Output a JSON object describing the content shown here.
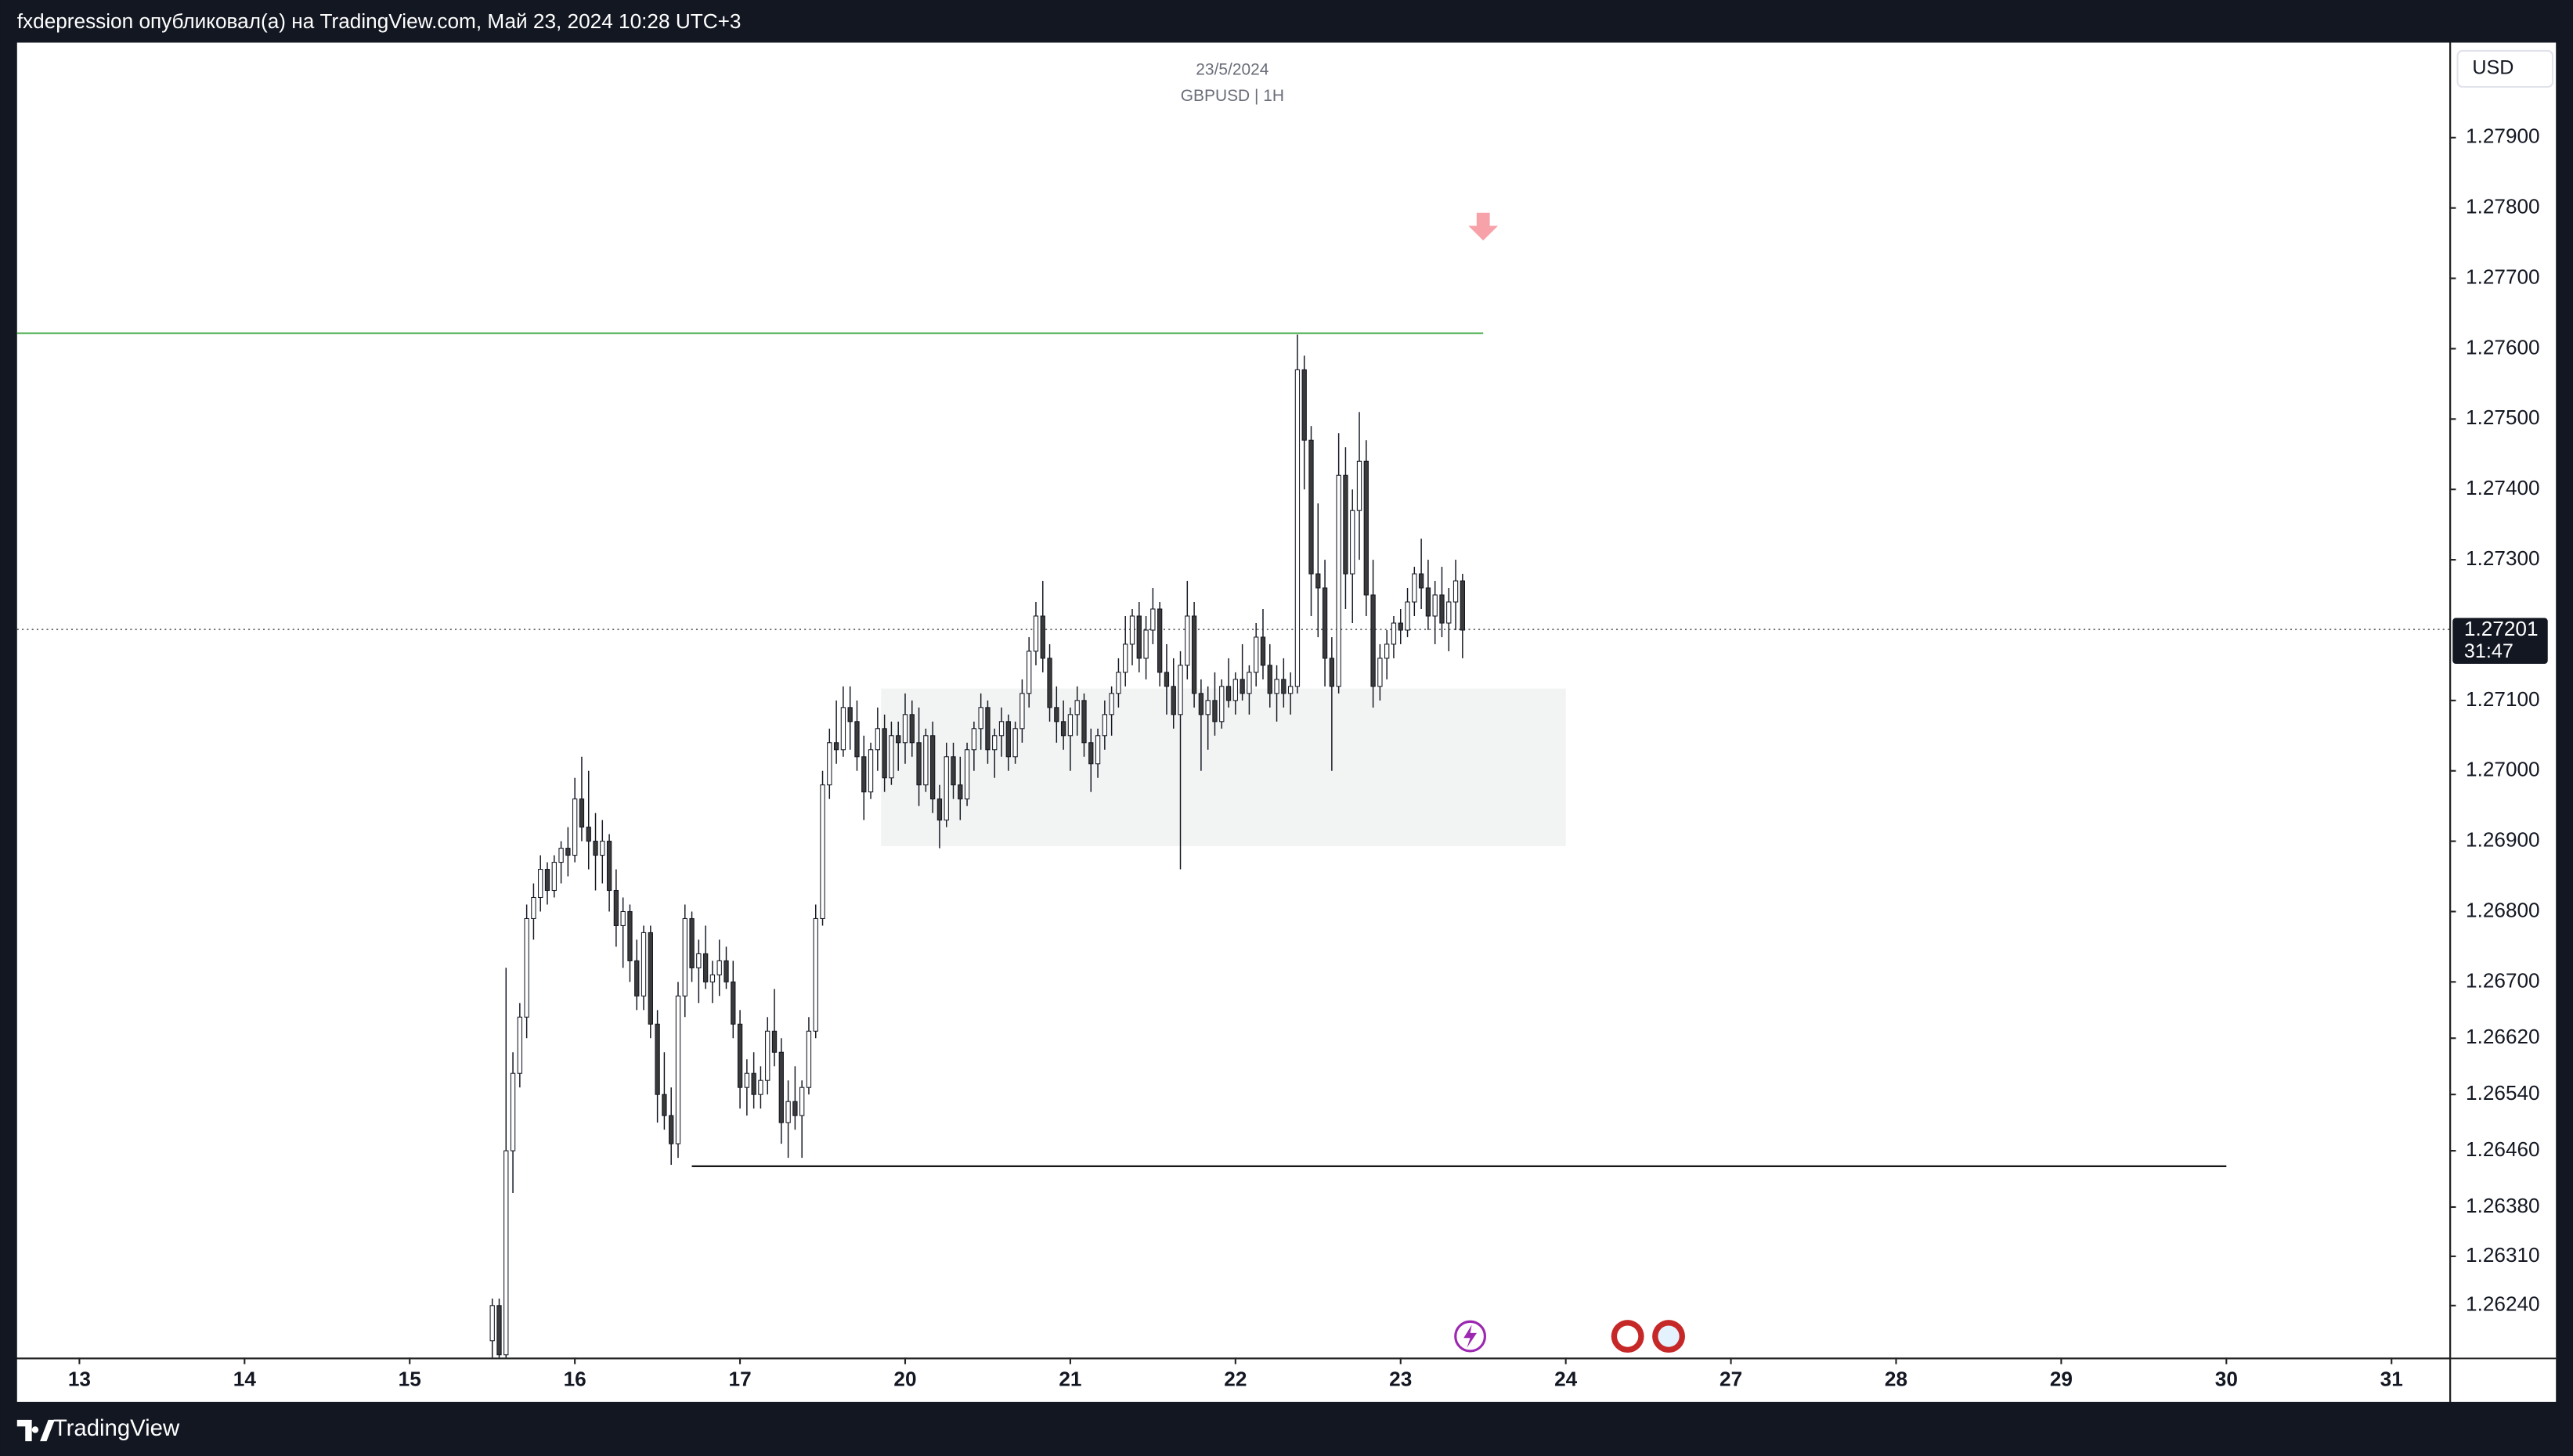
{
  "header": "fxdepression опубликовал(а) на TradingView.com, Май 23, 2024 10:28 UTC+3",
  "footer": "TradingView",
  "chart_data": {
    "type": "candlestick",
    "title": "23/5/2024",
    "subtitle": "GBPUSD | 1H",
    "currency": "USD",
    "last_price": 1.27201,
    "countdown": "31:47",
    "xlim": [
      -9.06,
      344.4
    ],
    "ylim": [
      1.26166,
      1.28035
    ],
    "xticks": [
      {
        "value": 0,
        "label": "13"
      },
      {
        "value": 24,
        "label": "14"
      },
      {
        "value": 48,
        "label": "15"
      },
      {
        "value": 72,
        "label": "16"
      },
      {
        "value": 96,
        "label": "17"
      },
      {
        "value": 120,
        "label": "20"
      },
      {
        "value": 144,
        "label": "21"
      },
      {
        "value": 168,
        "label": "22"
      },
      {
        "value": 192,
        "label": "23"
      },
      {
        "value": 216,
        "label": "24"
      },
      {
        "value": 240,
        "label": "27"
      },
      {
        "value": 264,
        "label": "28"
      },
      {
        "value": 288,
        "label": "29"
      },
      {
        "value": 312,
        "label": "30"
      },
      {
        "value": 336,
        "label": "31"
      }
    ],
    "yticks": [
      {
        "value": 1.2624,
        "label": "1.26240"
      },
      {
        "value": 1.2631,
        "label": "1.26310"
      },
      {
        "value": 1.2638,
        "label": "1.26380"
      },
      {
        "value": 1.2646,
        "label": "1.26460"
      },
      {
        "value": 1.2654,
        "label": "1.26540"
      },
      {
        "value": 1.2662,
        "label": "1.26620"
      },
      {
        "value": 1.267,
        "label": "1.26700"
      },
      {
        "value": 1.268,
        "label": "1.26800"
      },
      {
        "value": 1.269,
        "label": "1.26900"
      },
      {
        "value": 1.27,
        "label": "1.27000"
      },
      {
        "value": 1.271,
        "label": "1.27100"
      },
      {
        "value": 1.273,
        "label": "1.27300"
      },
      {
        "value": 1.274,
        "label": "1.27400"
      },
      {
        "value": 1.275,
        "label": "1.27500"
      },
      {
        "value": 1.276,
        "label": "1.27600"
      },
      {
        "value": 1.277,
        "label": "1.27700"
      },
      {
        "value": 1.278,
        "label": "1.27800"
      },
      {
        "value": 1.279,
        "label": "1.27900"
      }
    ],
    "up_color": "#ffffff",
    "down_color": "#3a3a3a",
    "levels": [
      {
        "price": 1.27622,
        "x": [
          -9.06,
          204
        ],
        "color": "#4caf50"
      },
      {
        "price": 1.26438,
        "x": [
          89,
          312
        ],
        "color": "#000000"
      }
    ],
    "zone": {
      "x": [
        116.5,
        216
      ],
      "price": [
        1.26893,
        1.27117
      ],
      "color": "#f2f4f3"
    },
    "arrow": {
      "x": 204,
      "price": 1.2777,
      "color": "#f7a1a8"
    },
    "x": [
      60,
      61,
      62,
      63,
      64,
      65,
      66,
      67,
      68,
      69,
      70,
      71,
      72,
      73,
      74,
      75,
      76,
      77,
      78,
      79,
      80,
      81,
      82,
      83,
      84,
      85,
      86,
      87,
      88,
      89,
      90,
      91,
      92,
      93,
      94,
      95,
      96,
      97,
      98,
      99,
      100,
      101,
      102,
      103,
      104,
      105,
      106,
      107,
      108,
      109,
      110,
      111,
      112,
      113,
      114,
      115,
      116,
      117,
      118,
      119,
      120,
      121,
      122,
      123,
      124,
      125,
      126,
      127,
      128,
      129,
      130,
      131,
      132,
      133,
      134,
      135,
      136,
      137,
      138,
      139,
      140,
      141,
      142,
      143,
      144,
      145,
      146,
      147,
      148,
      149,
      150,
      151,
      152,
      153,
      154,
      155,
      156,
      157,
      158,
      159,
      160,
      161,
      162,
      163,
      164,
      165,
      166,
      167,
      168,
      169,
      170,
      171,
      172,
      173,
      174,
      175,
      176,
      177,
      178,
      179,
      180,
      181,
      182,
      183,
      184,
      185,
      186,
      187,
      188,
      189,
      190,
      191,
      192,
      193,
      194,
      195,
      196,
      197,
      198,
      199,
      200,
      201
    ],
    "ohlc": [
      [
        1.2619,
        1.2625,
        1.2615,
        1.2624
      ],
      [
        1.2624,
        1.2625,
        1.2615,
        1.2617
      ],
      [
        1.2617,
        1.2672,
        1.2615,
        1.2646
      ],
      [
        1.2646,
        1.266,
        1.264,
        1.2657
      ],
      [
        1.2657,
        1.2667,
        1.2655,
        1.2665
      ],
      [
        1.2665,
        1.2681,
        1.2662,
        1.2679
      ],
      [
        1.2679,
        1.2684,
        1.2676,
        1.2682
      ],
      [
        1.2682,
        1.2688,
        1.268,
        1.2686
      ],
      [
        1.2686,
        1.2687,
        1.2681,
        1.2683
      ],
      [
        1.2683,
        1.2688,
        1.2682,
        1.2687
      ],
      [
        1.2687,
        1.269,
        1.2684,
        1.2689
      ],
      [
        1.2689,
        1.2692,
        1.2685,
        1.2688
      ],
      [
        1.2688,
        1.2699,
        1.2687,
        1.2696
      ],
      [
        1.2696,
        1.2702,
        1.269,
        1.2692
      ],
      [
        1.2692,
        1.27,
        1.2686,
        1.269
      ],
      [
        1.269,
        1.2694,
        1.2683,
        1.2688
      ],
      [
        1.2688,
        1.2693,
        1.2684,
        1.269
      ],
      [
        1.269,
        1.2691,
        1.268,
        1.2683
      ],
      [
        1.2683,
        1.2686,
        1.2675,
        1.2678
      ],
      [
        1.2678,
        1.2682,
        1.2672,
        1.268
      ],
      [
        1.268,
        1.2681,
        1.267,
        1.2673
      ],
      [
        1.2673,
        1.2676,
        1.2666,
        1.2668
      ],
      [
        1.2668,
        1.2678,
        1.2666,
        1.2677
      ],
      [
        1.2677,
        1.2678,
        1.2662,
        1.2664
      ],
      [
        1.2664,
        1.2666,
        1.265,
        1.2654
      ],
      [
        1.2654,
        1.266,
        1.2649,
        1.2651
      ],
      [
        1.2651,
        1.2655,
        1.2644,
        1.2647
      ],
      [
        1.2647,
        1.267,
        1.2645,
        1.2668
      ],
      [
        1.2668,
        1.2681,
        1.2665,
        1.2679
      ],
      [
        1.2679,
        1.268,
        1.267,
        1.2672
      ],
      [
        1.2672,
        1.2676,
        1.2667,
        1.2674
      ],
      [
        1.2674,
        1.2678,
        1.2669,
        1.267
      ],
      [
        1.267,
        1.2673,
        1.2667,
        1.2671
      ],
      [
        1.2671,
        1.2676,
        1.2668,
        1.2673
      ],
      [
        1.2673,
        1.2675,
        1.2669,
        1.267
      ],
      [
        1.267,
        1.2673,
        1.2662,
        1.2664
      ],
      [
        1.2664,
        1.2666,
        1.2652,
        1.2655
      ],
      [
        1.2655,
        1.2659,
        1.2651,
        1.2657
      ],
      [
        1.2657,
        1.266,
        1.2652,
        1.2654
      ],
      [
        1.2654,
        1.2658,
        1.2652,
        1.2656
      ],
      [
        1.2656,
        1.2665,
        1.2654,
        1.2663
      ],
      [
        1.2663,
        1.2669,
        1.2658,
        1.266
      ],
      [
        1.266,
        1.2662,
        1.2647,
        1.265
      ],
      [
        1.265,
        1.2656,
        1.2645,
        1.2653
      ],
      [
        1.2653,
        1.2658,
        1.2649,
        1.2651
      ],
      [
        1.2651,
        1.2656,
        1.2645,
        1.2655
      ],
      [
        1.2655,
        1.2665,
        1.2654,
        1.2663
      ],
      [
        1.2663,
        1.2681,
        1.2662,
        1.2679
      ],
      [
        1.2679,
        1.27,
        1.2678,
        1.2698
      ],
      [
        1.2698,
        1.2706,
        1.2696,
        1.2704
      ],
      [
        1.2704,
        1.271,
        1.2701,
        1.2703
      ],
      [
        1.2703,
        1.2712,
        1.2702,
        1.2709
      ],
      [
        1.2709,
        1.2712,
        1.2703,
        1.2707
      ],
      [
        1.2707,
        1.271,
        1.27,
        1.2702
      ],
      [
        1.2702,
        1.2705,
        1.2693,
        1.2697
      ],
      [
        1.2697,
        1.2704,
        1.2696,
        1.2703
      ],
      [
        1.2703,
        1.2709,
        1.27,
        1.2706
      ],
      [
        1.2706,
        1.2708,
        1.2697,
        1.2699
      ],
      [
        1.2699,
        1.2707,
        1.2698,
        1.2705
      ],
      [
        1.2705,
        1.2707,
        1.27,
        1.2704
      ],
      [
        1.2704,
        1.2711,
        1.2701,
        1.2708
      ],
      [
        1.2708,
        1.271,
        1.2702,
        1.2704
      ],
      [
        1.2704,
        1.2709,
        1.2695,
        1.2698
      ],
      [
        1.2698,
        1.2706,
        1.2697,
        1.2705
      ],
      [
        1.2705,
        1.2707,
        1.2694,
        1.2696
      ],
      [
        1.2696,
        1.2698,
        1.2689,
        1.2693
      ],
      [
        1.2693,
        1.2704,
        1.2692,
        1.2702
      ],
      [
        1.2702,
        1.2704,
        1.2696,
        1.2698
      ],
      [
        1.2698,
        1.2702,
        1.2693,
        1.2696
      ],
      [
        1.2696,
        1.2704,
        1.2695,
        1.2703
      ],
      [
        1.2703,
        1.2707,
        1.27,
        1.2706
      ],
      [
        1.2706,
        1.2711,
        1.2703,
        1.2709
      ],
      [
        1.2709,
        1.271,
        1.2701,
        1.2703
      ],
      [
        1.2703,
        1.2706,
        1.2699,
        1.2705
      ],
      [
        1.2705,
        1.2709,
        1.2702,
        1.2707
      ],
      [
        1.2707,
        1.2708,
        1.27,
        1.2702
      ],
      [
        1.2702,
        1.2707,
        1.2701,
        1.2706
      ],
      [
        1.2706,
        1.2713,
        1.2704,
        1.2711
      ],
      [
        1.2711,
        1.2719,
        1.2709,
        1.2717
      ],
      [
        1.2717,
        1.2724,
        1.2715,
        1.2722
      ],
      [
        1.2722,
        1.2727,
        1.2714,
        1.2716
      ],
      [
        1.2716,
        1.2718,
        1.2707,
        1.2709
      ],
      [
        1.2709,
        1.2712,
        1.2704,
        1.2707
      ],
      [
        1.2707,
        1.271,
        1.2703,
        1.2705
      ],
      [
        1.2705,
        1.2709,
        1.27,
        1.2708
      ],
      [
        1.2708,
        1.2712,
        1.2705,
        1.271
      ],
      [
        1.271,
        1.2711,
        1.2702,
        1.2704
      ],
      [
        1.2704,
        1.2706,
        1.2697,
        1.2701
      ],
      [
        1.2701,
        1.2706,
        1.2699,
        1.2705
      ],
      [
        1.2705,
        1.271,
        1.2703,
        1.2708
      ],
      [
        1.2708,
        1.2712,
        1.2705,
        1.2711
      ],
      [
        1.2711,
        1.2716,
        1.2709,
        1.2714
      ],
      [
        1.2714,
        1.2722,
        1.2712,
        1.2718
      ],
      [
        1.2718,
        1.2723,
        1.2715,
        1.2722
      ],
      [
        1.2722,
        1.2724,
        1.2714,
        1.2716
      ],
      [
        1.2716,
        1.2722,
        1.2713,
        1.272
      ],
      [
        1.272,
        1.2726,
        1.2718,
        1.2723
      ],
      [
        1.2723,
        1.2724,
        1.2712,
        1.2714
      ],
      [
        1.2714,
        1.2718,
        1.2708,
        1.2712
      ],
      [
        1.2712,
        1.2716,
        1.2706,
        1.2708
      ],
      [
        1.2708,
        1.2717,
        1.2686,
        1.2715
      ],
      [
        1.2715,
        1.2727,
        1.2713,
        1.2722
      ],
      [
        1.2722,
        1.2724,
        1.2709,
        1.2711
      ],
      [
        1.2711,
        1.2713,
        1.27,
        1.2708
      ],
      [
        1.2708,
        1.2712,
        1.2703,
        1.271
      ],
      [
        1.271,
        1.2714,
        1.2705,
        1.2707
      ],
      [
        1.2707,
        1.2713,
        1.2706,
        1.2712
      ],
      [
        1.2712,
        1.2716,
        1.2709,
        1.271
      ],
      [
        1.271,
        1.2714,
        1.2708,
        1.2713
      ],
      [
        1.2713,
        1.2718,
        1.271,
        1.2711
      ],
      [
        1.2711,
        1.2715,
        1.2708,
        1.2714
      ],
      [
        1.2714,
        1.2721,
        1.2712,
        1.2719
      ],
      [
        1.2719,
        1.2723,
        1.2713,
        1.2715
      ],
      [
        1.2715,
        1.2718,
        1.2709,
        1.2711
      ],
      [
        1.2711,
        1.2715,
        1.2707,
        1.2713
      ],
      [
        1.2713,
        1.2716,
        1.2709,
        1.2711
      ],
      [
        1.2711,
        1.2714,
        1.2708,
        1.2712
      ],
      [
        1.2712,
        1.2762,
        1.2711,
        1.2757
      ],
      [
        1.2757,
        1.2759,
        1.274,
        1.2747
      ],
      [
        1.2747,
        1.2749,
        1.2722,
        1.2728
      ],
      [
        1.2728,
        1.2738,
        1.2719,
        1.2726
      ],
      [
        1.2726,
        1.273,
        1.2712,
        1.2716
      ],
      [
        1.2716,
        1.2719,
        1.27,
        1.2712
      ],
      [
        1.2712,
        1.2748,
        1.2711,
        1.2742
      ],
      [
        1.2742,
        1.2746,
        1.2723,
        1.2728
      ],
      [
        1.2728,
        1.274,
        1.2721,
        1.2737
      ],
      [
        1.2737,
        1.2751,
        1.273,
        1.2744
      ],
      [
        1.2744,
        1.2747,
        1.2722,
        1.2725
      ],
      [
        1.2725,
        1.273,
        1.2709,
        1.2712
      ],
      [
        1.2712,
        1.2718,
        1.271,
        1.2716
      ],
      [
        1.2716,
        1.272,
        1.2713,
        1.2718
      ],
      [
        1.2718,
        1.2722,
        1.2716,
        1.2721
      ],
      [
        1.2721,
        1.2723,
        1.2718,
        1.272
      ],
      [
        1.272,
        1.2726,
        1.2719,
        1.2724
      ],
      [
        1.2724,
        1.2729,
        1.2722,
        1.2728
      ],
      [
        1.2728,
        1.2733,
        1.2723,
        1.2726
      ],
      [
        1.2726,
        1.273,
        1.272,
        1.2722
      ],
      [
        1.2722,
        1.2727,
        1.2718,
        1.2725
      ],
      [
        1.2725,
        1.2729,
        1.2719,
        1.2721
      ],
      [
        1.2721,
        1.2726,
        1.2717,
        1.2724
      ],
      [
        1.2724,
        1.273,
        1.272,
        1.2727
      ],
      [
        1.2727,
        1.2728,
        1.2716,
        1.272
      ]
    ]
  }
}
